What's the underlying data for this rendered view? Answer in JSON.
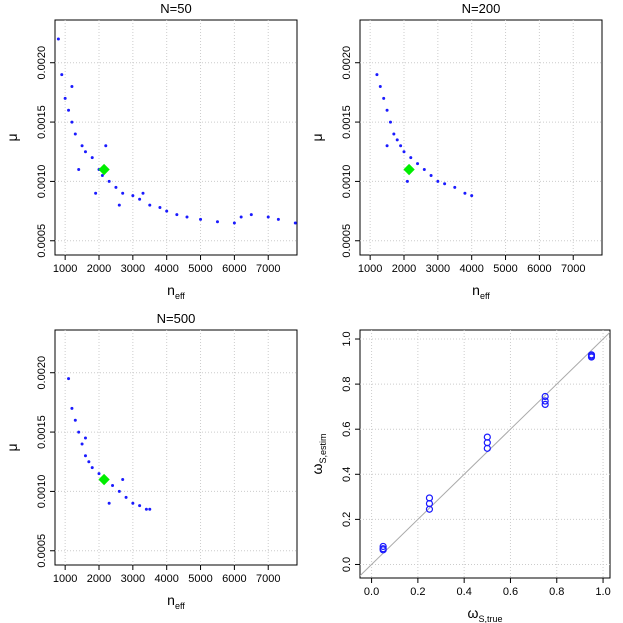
{
  "chart_data": [
    {
      "type": "scatter",
      "title": "N=50",
      "marker": "dot",
      "color": "#1a1aff",
      "x_label": {
        "main": "n",
        "sub": "eff"
      },
      "y_label": {
        "main": "μ"
      },
      "x": [
        800,
        900,
        1000,
        1100,
        1200,
        1300,
        1500,
        1600,
        1800,
        2000,
        2100,
        2300,
        2500,
        2700,
        3000,
        3200,
        3500,
        3800,
        4000,
        4300,
        4600,
        5000,
        5500,
        6000,
        6200,
        6500,
        7000,
        7300,
        7800,
        1400,
        1900,
        2600,
        3300,
        1200,
        2200
      ],
      "y": [
        0.0022,
        0.0019,
        0.0017,
        0.0016,
        0.0015,
        0.0014,
        0.0013,
        0.00125,
        0.0012,
        0.0011,
        0.00105,
        0.001,
        0.00095,
        0.0009,
        0.00088,
        0.00085,
        0.0008,
        0.00078,
        0.00075,
        0.00072,
        0.0007,
        0.00068,
        0.00066,
        0.00065,
        0.0007,
        0.00072,
        0.0007,
        0.00068,
        0.00065,
        0.0011,
        0.0009,
        0.0008,
        0.0009,
        0.0018,
        0.0013
      ],
      "truth": {
        "x": 2150,
        "y": 0.0011,
        "color": "#00ee00"
      },
      "xlim": [
        700,
        7850
      ],
      "ylim": [
        0.00038,
        0.00236
      ],
      "xticks": [
        1000,
        2000,
        3000,
        4000,
        5000,
        6000,
        7000
      ],
      "yticks": [
        0.0005,
        {
          "value": 0.001,
          "label": "0.0010"
        },
        0.0015,
        {
          "value": 0.002,
          "label": "0.0020"
        }
      ],
      "grid": true
    },
    {
      "type": "scatter",
      "title": "N=200",
      "marker": "dot",
      "color": "#1a1aff",
      "x_label": {
        "main": "n",
        "sub": "eff"
      },
      "y_label": {
        "main": "μ"
      },
      "x": [
        1200,
        1300,
        1400,
        1500,
        1600,
        1700,
        1800,
        1900,
        2000,
        2200,
        2400,
        2600,
        2800,
        3000,
        3200,
        3500,
        3800,
        4000,
        1500,
        2100
      ],
      "y": [
        0.0019,
        0.0018,
        0.0017,
        0.0016,
        0.0015,
        0.0014,
        0.00135,
        0.0013,
        0.00125,
        0.0012,
        0.00115,
        0.0011,
        0.00105,
        0.001,
        0.00098,
        0.00095,
        0.0009,
        0.00088,
        0.0013,
        0.001
      ],
      "truth": {
        "x": 2150,
        "y": 0.0011,
        "color": "#00ee00"
      },
      "xlim": [
        700,
        7850
      ],
      "ylim": [
        0.00038,
        0.00236
      ],
      "xticks": [
        1000,
        2000,
        3000,
        4000,
        5000,
        6000,
        7000
      ],
      "yticks": [
        0.0005,
        {
          "value": 0.001,
          "label": "0.0010"
        },
        0.0015,
        {
          "value": 0.002,
          "label": "0.0020"
        }
      ],
      "grid": true
    },
    {
      "type": "scatter",
      "title": "N=500",
      "marker": "dot",
      "color": "#1a1aff",
      "x_label": {
        "main": "n",
        "sub": "eff"
      },
      "y_label": {
        "main": "μ"
      },
      "x": [
        1100,
        1200,
        1300,
        1400,
        1500,
        1600,
        1700,
        1800,
        2000,
        2200,
        2400,
        2600,
        2800,
        3000,
        3200,
        3400,
        3500,
        1600,
        2300,
        2700
      ],
      "y": [
        0.00195,
        0.0017,
        0.0016,
        0.0015,
        0.0014,
        0.0013,
        0.00125,
        0.0012,
        0.00115,
        0.0011,
        0.00105,
        0.001,
        0.00095,
        0.0009,
        0.00088,
        0.00085,
        0.00085,
        0.00145,
        0.0009,
        0.0011
      ],
      "truth": {
        "x": 2150,
        "y": 0.0011,
        "color": "#00ee00"
      },
      "xlim": [
        700,
        7850
      ],
      "ylim": [
        0.00038,
        0.00236
      ],
      "xticks": [
        1000,
        2000,
        3000,
        4000,
        5000,
        6000,
        7000
      ],
      "yticks": [
        0.0005,
        {
          "value": 0.001,
          "label": "0.0010"
        },
        0.0015,
        {
          "value": 0.002,
          "label": "0.0020"
        }
      ],
      "grid": true
    },
    {
      "type": "scatter",
      "marker": "circle",
      "color": "#1a1aff",
      "identity_line": true,
      "x_label": {
        "main": "ω",
        "sub": "S,true"
      },
      "y_label": {
        "main": "ω",
        "sub": "S,estim"
      },
      "x": [
        0.05,
        0.05,
        0.05,
        0.25,
        0.25,
        0.25,
        0.5,
        0.5,
        0.5,
        0.75,
        0.75,
        0.75,
        0.95,
        0.95,
        0.95
      ],
      "y": [
        0.065,
        0.07,
        0.08,
        0.245,
        0.27,
        0.295,
        0.515,
        0.54,
        0.565,
        0.71,
        0.725,
        0.745,
        0.92,
        0.925,
        0.93
      ],
      "xlim": [
        -0.05,
        1.03
      ],
      "ylim": [
        -0.06,
        1.04
      ],
      "xticks": [
        {
          "value": 0,
          "label": "0.0"
        },
        0.2,
        0.4,
        0.6,
        0.8,
        {
          "value": 1,
          "label": "1.0"
        }
      ],
      "yticks": [
        {
          "value": 0,
          "label": "0.0"
        },
        0.2,
        0.4,
        0.6,
        0.8,
        {
          "value": 1,
          "label": "1.0"
        }
      ],
      "grid": true
    }
  ]
}
